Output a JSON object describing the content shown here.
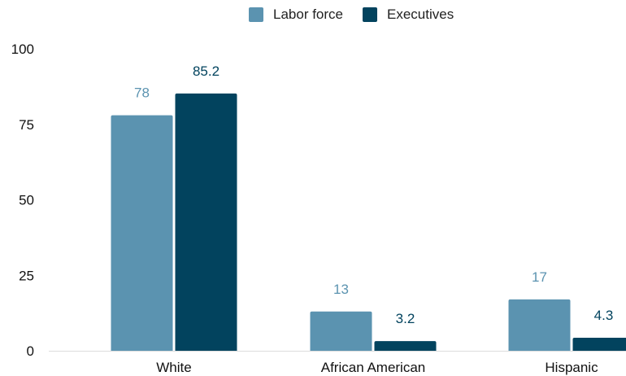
{
  "chart_data": {
    "type": "bar",
    "categories": [
      "White",
      "African American",
      "Hispanic"
    ],
    "series": [
      {
        "name": "Labor force",
        "values": [
          78,
          13,
          17
        ],
        "color": "#5b93b0"
      },
      {
        "name": "Executives",
        "values": [
          85.2,
          3.2,
          4.3
        ],
        "color": "#02435e"
      }
    ],
    "yticks": [
      "0",
      "25",
      "50",
      "75",
      "100"
    ],
    "data_labels": [
      [
        "78",
        "13",
        "17"
      ],
      [
        "85.2",
        "3.2",
        "4.3"
      ]
    ],
    "ylim": [
      0,
      100
    ],
    "grid": false,
    "legend": "top"
  }
}
